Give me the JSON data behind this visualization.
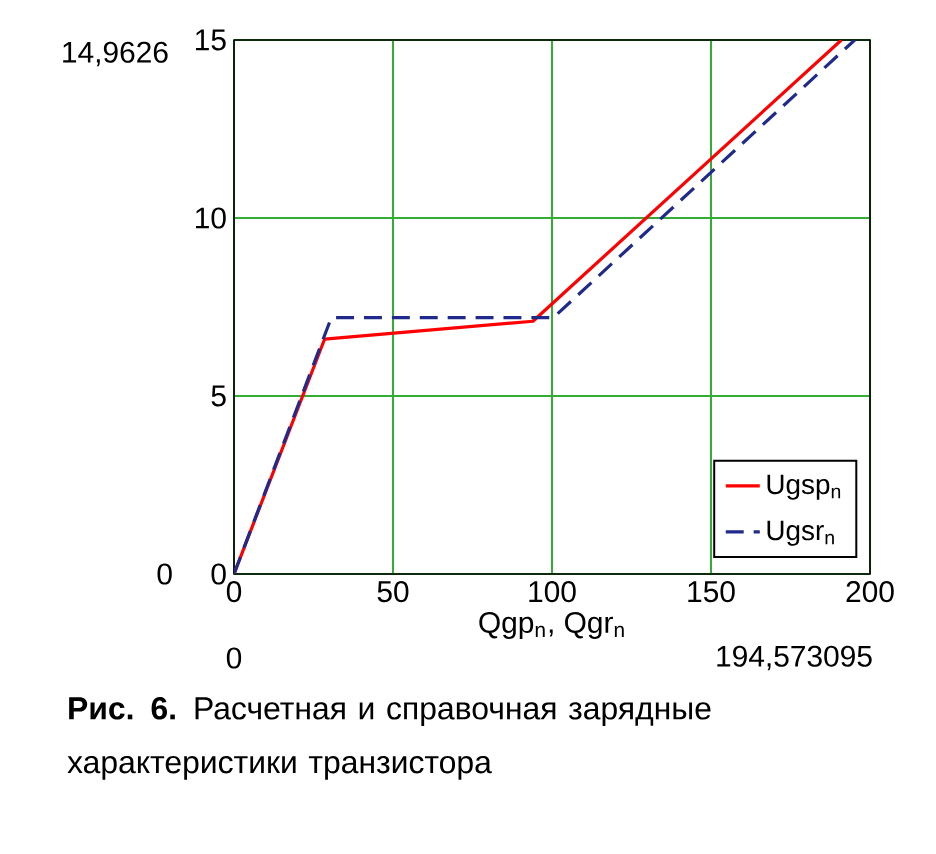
{
  "chart_data": {
    "type": "line",
    "xlabel": "Qgp$_{n}$, Qgr$_{n}$",
    "series": [
      {
        "name": "Ugsp$_{n}$",
        "color": "#ff0000",
        "line_style": "solid",
        "x": [
          0,
          28.5,
          94,
          191
        ],
        "values": [
          0,
          6.6,
          7.1,
          15
        ]
      },
      {
        "name": "Ugsr$_{n}$",
        "color": "#1f2a8c",
        "line_style": "dashed",
        "x": [
          0,
          30.6,
          100.4,
          195.2
        ],
        "values": [
          0,
          7.2,
          7.2,
          15
        ]
      }
    ],
    "xlim": [
      0,
      200
    ],
    "ylim": [
      0,
      15
    ],
    "xticks": [
      0,
      50,
      100,
      150,
      200
    ],
    "yticks": [
      0,
      5,
      10,
      15
    ],
    "grid": true,
    "legend": "bottom right",
    "marker": "none",
    "annotations": [
      "14,9626",
      "0",
      "0",
      "194,573095",
      "**Рис. 6.** Расчетная и справочная зарядные характеристики транзистора"
    ]
  }
}
